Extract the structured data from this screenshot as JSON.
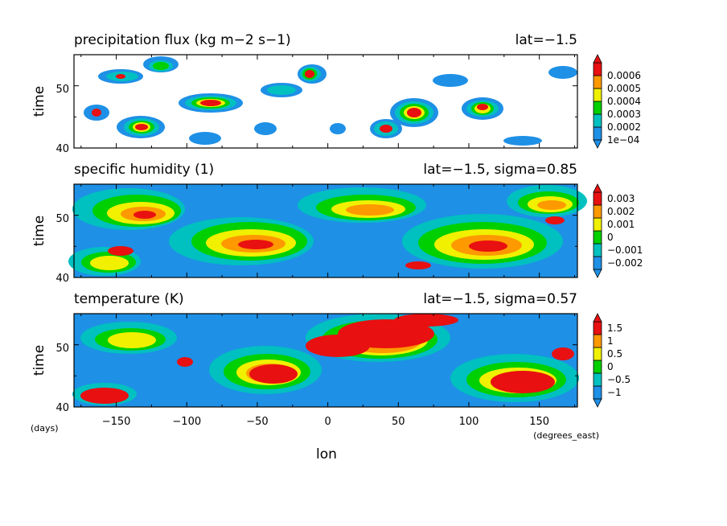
{
  "figure": {
    "xlabel": "lon",
    "x_unit": "(degrees_east)",
    "y_unit": "(days)",
    "x_ticks": [
      -150,
      -100,
      -50,
      0,
      50,
      100,
      150
    ],
    "x_tick_labels": [
      "−150",
      "−100",
      "−50",
      "0",
      "50",
      "100",
      "150"
    ],
    "xlim": [
      -180,
      177
    ],
    "field_colors": [
      "#1e90e6",
      "#00c0c0",
      "#00d000",
      "#f0f000",
      "#ff9900",
      "#e81010"
    ]
  },
  "chart_data": [
    {
      "type": "heatmap",
      "title": "precipitation flux (kg m−2 s−1)",
      "subtitle": "lat=−1.5",
      "ylabel": "time",
      "ylim": [
        40,
        55
      ],
      "y_ticks": [
        40,
        50
      ],
      "y_tick_labels": [
        "40",
        "50"
      ],
      "colorbar_levels": [
        0.0001,
        0.0002,
        0.0003,
        0.0004,
        0.0005,
        0.0006
      ],
      "colorbar_labels": [
        "1e−04",
        "0.0002",
        "0.0003",
        "0.0004",
        "0.0005",
        "0.0006"
      ],
      "colorbar_colors": [
        "#1e90e6",
        "#00c0c0",
        "#00d000",
        "#f0f000",
        "#ff9900",
        "#e81010"
      ],
      "background": "white"
    },
    {
      "type": "heatmap",
      "title": "specific humidity (1)",
      "subtitle": "lat=−1.5, sigma=0.85",
      "ylabel": "time",
      "ylim": [
        40,
        55
      ],
      "y_ticks": [
        40,
        50
      ],
      "y_tick_labels": [
        "40",
        "50"
      ],
      "colorbar_levels": [
        -0.002,
        -0.001,
        0,
        0.001,
        0.002,
        0.003
      ],
      "colorbar_labels": [
        "−0.002",
        "−0.001",
        "0",
        "0.001",
        "0.002",
        "0.003"
      ],
      "colorbar_colors": [
        "#1e90e6",
        "#00c0c0",
        "#00d000",
        "#f0f000",
        "#ff9900",
        "#e81010"
      ],
      "background": "filled"
    },
    {
      "type": "heatmap",
      "title": "temperature (K)",
      "subtitle": "lat=−1.5, sigma=0.57",
      "ylabel": "time",
      "ylim": [
        40,
        55
      ],
      "y_ticks": [
        40,
        50
      ],
      "y_tick_labels": [
        "40",
        "50"
      ],
      "colorbar_levels": [
        -1,
        -0.5,
        0,
        0.5,
        1,
        1.5
      ],
      "colorbar_labels": [
        "−1",
        "−0.5",
        "0",
        "0.5",
        "1",
        "1.5"
      ],
      "colorbar_colors": [
        "#1e90e6",
        "#00c0c0",
        "#00d000",
        "#f0f000",
        "#ff9900",
        "#e81010"
      ],
      "background": "filled"
    }
  ]
}
